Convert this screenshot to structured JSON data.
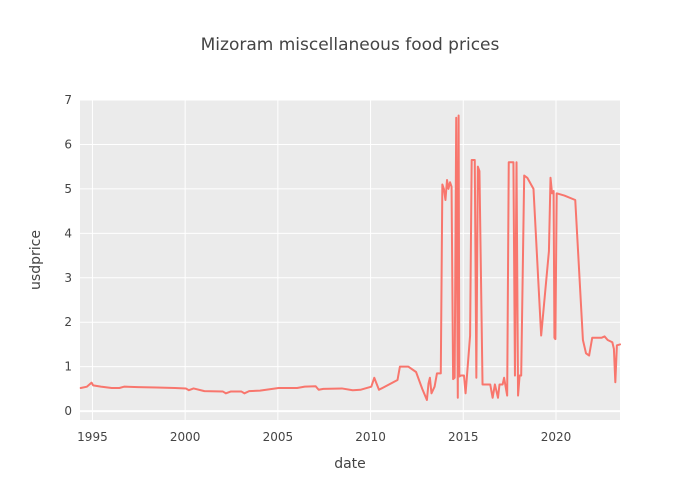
{
  "chart_data": {
    "type": "line",
    "title": "Mizoram miscellaneous food prices",
    "xlabel": "date",
    "ylabel": "usdprice",
    "xlim": [
      "1994-05-01",
      "2023-06-15"
    ],
    "ylim": [
      -0.2,
      7
    ],
    "x_ticks": [
      1995,
      2000,
      2005,
      2010,
      2015,
      2020
    ],
    "y_ticks": [
      0,
      1,
      2,
      3,
      4,
      5,
      6,
      7
    ],
    "grid": true,
    "plot_background": "#ebebeb",
    "series": [
      {
        "color": "#f8766d",
        "points": [
          [
            "1994-05-15",
            0.52
          ],
          [
            "1994-09-15",
            0.55
          ],
          [
            "1994-12-15",
            0.64
          ],
          [
            "1995-01-15",
            0.58
          ],
          [
            "1995-06-15",
            0.55
          ],
          [
            "1996-01-15",
            0.52
          ],
          [
            "1996-06-15",
            0.52
          ],
          [
            "1996-09-15",
            0.55
          ],
          [
            "1997-06-15",
            0.54
          ],
          [
            "1998-06-15",
            0.53
          ],
          [
            "1999-06-15",
            0.52
          ],
          [
            "2000-01-15",
            0.51
          ],
          [
            "2000-03-15",
            0.47
          ],
          [
            "2000-06-15",
            0.51
          ],
          [
            "2001-01-15",
            0.45
          ],
          [
            "2002-01-15",
            0.44
          ],
          [
            "2002-03-15",
            0.4
          ],
          [
            "2002-06-15",
            0.44
          ],
          [
            "2003-01-15",
            0.44
          ],
          [
            "2003-03-15",
            0.4
          ],
          [
            "2003-06-15",
            0.45
          ],
          [
            "2004-01-15",
            0.46
          ],
          [
            "2005-01-15",
            0.52
          ],
          [
            "2006-01-15",
            0.52
          ],
          [
            "2006-06-15",
            0.55
          ],
          [
            "2007-01-15",
            0.56
          ],
          [
            "2007-03-15",
            0.48
          ],
          [
            "2007-06-15",
            0.5
          ],
          [
            "2008-06-15",
            0.51
          ],
          [
            "2009-01-15",
            0.47
          ],
          [
            "2009-06-15",
            0.48
          ],
          [
            "2010-01-15",
            0.55
          ],
          [
            "2010-03-15",
            0.75
          ],
          [
            "2010-06-15",
            0.48
          ],
          [
            "2011-06-15",
            0.7
          ],
          [
            "2011-08-01",
            1.0
          ],
          [
            "2012-01-15",
            1.0
          ],
          [
            "2012-06-15",
            0.88
          ],
          [
            "2012-10-15",
            0.5
          ],
          [
            "2013-01-15",
            0.25
          ],
          [
            "2013-02-15",
            0.62
          ],
          [
            "2013-03-15",
            0.75
          ],
          [
            "2013-04-15",
            0.4
          ],
          [
            "2013-06-15",
            0.55
          ],
          [
            "2013-08-01",
            0.85
          ],
          [
            "2013-10-15",
            0.85
          ],
          [
            "2013-11-15",
            5.1
          ],
          [
            "2013-12-15",
            5.0
          ],
          [
            "2014-01-15",
            4.75
          ],
          [
            "2014-02-15",
            5.2
          ],
          [
            "2014-03-15",
            5.0
          ],
          [
            "2014-04-15",
            5.15
          ],
          [
            "2014-05-15",
            5.05
          ],
          [
            "2014-06-15",
            0.72
          ],
          [
            "2014-07-15",
            0.75
          ],
          [
            "2014-08-15",
            6.6
          ],
          [
            "2014-09-15",
            0.3
          ],
          [
            "2014-10-01",
            6.65
          ],
          [
            "2014-10-15",
            0.78
          ],
          [
            "2014-11-15",
            0.8
          ],
          [
            "2015-01-15",
            0.8
          ],
          [
            "2015-02-15",
            0.4
          ],
          [
            "2015-03-15",
            0.8
          ],
          [
            "2015-05-15",
            1.7
          ],
          [
            "2015-06-15",
            5.65
          ],
          [
            "2015-08-15",
            5.65
          ],
          [
            "2015-09-15",
            0.75
          ],
          [
            "2015-10-15",
            5.5
          ],
          [
            "2015-11-15",
            5.4
          ],
          [
            "2016-01-15",
            0.6
          ],
          [
            "2016-06-15",
            0.6
          ],
          [
            "2016-08-01",
            0.3
          ],
          [
            "2016-09-15",
            0.6
          ],
          [
            "2016-11-15",
            0.3
          ],
          [
            "2016-12-15",
            0.6
          ],
          [
            "2017-02-15",
            0.6
          ],
          [
            "2017-03-15",
            0.75
          ],
          [
            "2017-05-15",
            0.35
          ],
          [
            "2017-06-15",
            5.6
          ],
          [
            "2017-09-15",
            5.6
          ],
          [
            "2017-10-15",
            0.8
          ],
          [
            "2017-11-15",
            5.6
          ],
          [
            "2017-12-15",
            0.35
          ],
          [
            "2018-01-15",
            0.8
          ],
          [
            "2018-02-15",
            0.8
          ],
          [
            "2018-04-15",
            5.3
          ],
          [
            "2018-06-15",
            5.25
          ],
          [
            "2018-10-15",
            5.0
          ],
          [
            "2019-03-15",
            1.7
          ],
          [
            "2019-08-15",
            3.6
          ],
          [
            "2019-09-15",
            5.25
          ],
          [
            "2019-10-15",
            4.9
          ],
          [
            "2019-11-15",
            4.95
          ],
          [
            "2019-12-01",
            1.65
          ],
          [
            "2019-12-20",
            1.62
          ],
          [
            "2020-01-15",
            4.9
          ],
          [
            "2020-06-15",
            4.85
          ],
          [
            "2021-01-15",
            4.75
          ],
          [
            "2021-06-15",
            1.6
          ],
          [
            "2021-08-15",
            1.3
          ],
          [
            "2021-10-15",
            1.25
          ],
          [
            "2021-12-15",
            1.65
          ],
          [
            "2022-06-15",
            1.65
          ],
          [
            "2022-08-15",
            1.68
          ],
          [
            "2022-10-15",
            1.6
          ],
          [
            "2023-01-15",
            1.55
          ],
          [
            "2023-02-15",
            1.4
          ],
          [
            "2023-03-15",
            0.65
          ],
          [
            "2023-04-15",
            1.48
          ],
          [
            "2023-06-15",
            1.5
          ]
        ]
      }
    ]
  }
}
